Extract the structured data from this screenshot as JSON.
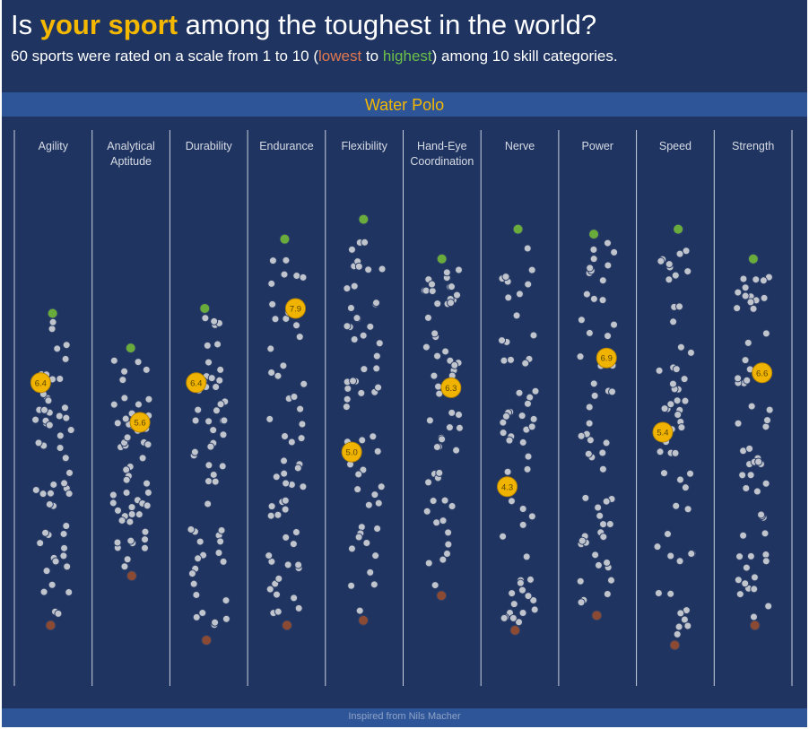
{
  "header": {
    "title_pre": "Is ",
    "title_highlight": "your sport",
    "title_post": " among the toughest in the world?",
    "subtitle_pre": "60 sports were rated on a scale from 1 to 10 (",
    "subtitle_lowest": "lowest",
    "subtitle_mid": " to ",
    "subtitle_highest": "highest",
    "subtitle_post": ") among 10 skill categories."
  },
  "selected_sport": "Water Polo",
  "footer": {
    "text": "Inspired from Nils Macher"
  },
  "colors": {
    "background": "#1f3460",
    "band": "#2e5597",
    "highlight": "#f5b800",
    "lowest": "#8a4a34",
    "highest": "#6aac3c",
    "dot": "#c0c4cc"
  },
  "chart_data": {
    "type": "scatter",
    "sport": "Water Polo",
    "y_range": [
      1,
      10
    ],
    "categories": [
      {
        "label": [
          "Agility"
        ],
        "selected": 6.4,
        "lowest": 1.5,
        "highest": 7.8
      },
      {
        "label": [
          "Analytical",
          "Aptitude"
        ],
        "selected": 5.6,
        "lowest": 2.5,
        "highest": 7.1
      },
      {
        "label": [
          "Durability"
        ],
        "selected": 6.4,
        "lowest": 1.2,
        "highest": 7.9
      },
      {
        "label": [
          "Endurance"
        ],
        "selected": 7.9,
        "lowest": 1.5,
        "highest": 9.3
      },
      {
        "label": [
          "Flexibility"
        ],
        "selected": 5.0,
        "lowest": 1.6,
        "highest": 9.7
      },
      {
        "label": [
          "Hand-Eye",
          "Coordination"
        ],
        "selected": 6.3,
        "lowest": 2.1,
        "highest": 8.9
      },
      {
        "label": [
          "Nerve"
        ],
        "selected": 4.3,
        "lowest": 1.4,
        "highest": 9.5
      },
      {
        "label": [
          "Power"
        ],
        "selected": 6.9,
        "lowest": 1.7,
        "highest": 9.4
      },
      {
        "label": [
          "Speed"
        ],
        "selected": 5.4,
        "lowest": 1.1,
        "highest": 9.5
      },
      {
        "label": [
          "Strength"
        ],
        "selected": 6.6,
        "lowest": 1.5,
        "highest": 8.9
      }
    ]
  }
}
